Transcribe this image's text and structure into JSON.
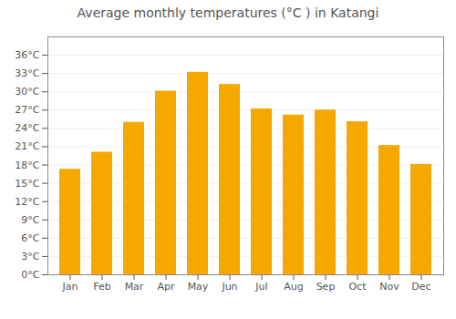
{
  "chart_data": {
    "type": "bar",
    "title": "Average monthly temperatures (°C ) in Katangi",
    "categories": [
      "Jan",
      "Feb",
      "Mar",
      "Apr",
      "May",
      "Jun",
      "Jul",
      "Aug",
      "Sep",
      "Oct",
      "Nov",
      "Dec"
    ],
    "values": [
      17.3,
      20.1,
      25.0,
      30.1,
      33.2,
      31.2,
      27.2,
      26.2,
      27.0,
      25.1,
      21.2,
      18.1
    ],
    "color": "#F5A800",
    "ylim": [
      0,
      39
    ],
    "yticks": [
      {
        "value": 0,
        "label": "0°C"
      },
      {
        "value": 3,
        "label": "3°C"
      },
      {
        "value": 6,
        "label": "6°C"
      },
      {
        "value": 9,
        "label": "9°C"
      },
      {
        "value": 12,
        "label": "12°C"
      },
      {
        "value": 15,
        "label": "15°C"
      },
      {
        "value": 18,
        "label": "18°C"
      },
      {
        "value": 21,
        "label": "21°C"
      },
      {
        "value": 24,
        "label": "24°C"
      },
      {
        "value": 27,
        "label": "27°C"
      },
      {
        "value": 30,
        "label": "30°C"
      },
      {
        "value": 33,
        "label": "33°C"
      },
      {
        "value": 36,
        "label": "36°C"
      }
    ],
    "grid": true
  }
}
